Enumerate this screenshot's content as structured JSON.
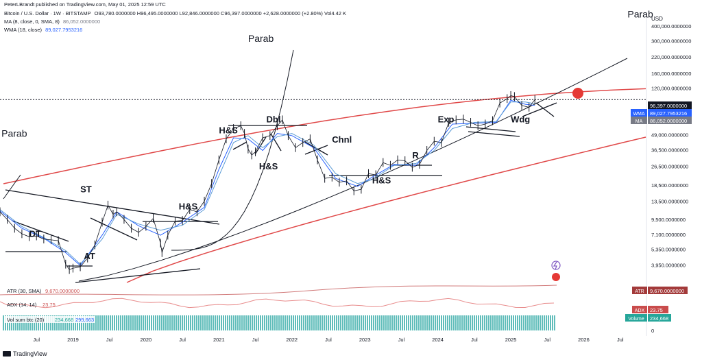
{
  "header": {
    "publisher": "PeterLBrandt published on TradingView.com, May 01, 2025 12:59 UTC",
    "symbol": "Bitcoin / U.S. Dollar · 1W · BITSTAMP",
    "ohlc": "O93,780.0000000  H96,495.0000000  L92,846.0000000  C96,397.0000000  +2,628.0000000 (+2.80%)  Vol4.42 K",
    "ma_label": "MA (8, close, 0, SMA, 8)",
    "ma_value": "86,052.0000000",
    "wma_label": "WMA (18, close)",
    "wma_value": "89,027.7953216"
  },
  "footer": {
    "brand": "TradingView"
  },
  "colors": {
    "price": "#131722",
    "ma": "#2962ff",
    "wma": "#5b9bd5",
    "parabola_red": "#e04848",
    "trendline": "#131722",
    "atr": "#d17a7a",
    "adx": "#e88c8c",
    "volume": "#4fb6b2",
    "marker": "#e53935"
  },
  "chart_data": {
    "type": "line",
    "title": "Bitcoin / U.S. Dollar · 1W · BITSTAMP",
    "xlabel": "",
    "ylabel": "USD",
    "yscale": "log",
    "ylim": [
      2700,
      520000
    ],
    "xlim": [
      2018.0,
      2026.85
    ],
    "x_ticks": [
      {
        "x": 2018.5,
        "label": "Jul"
      },
      {
        "x": 2019.0,
        "label": "2019"
      },
      {
        "x": 2019.5,
        "label": "Jul"
      },
      {
        "x": 2020.0,
        "label": "2020"
      },
      {
        "x": 2020.5,
        "label": "Jul"
      },
      {
        "x": 2021.0,
        "label": "2021"
      },
      {
        "x": 2021.5,
        "label": "Jul"
      },
      {
        "x": 2022.0,
        "label": "2022"
      },
      {
        "x": 2022.5,
        "label": "Jul"
      },
      {
        "x": 2023.0,
        "label": "2023"
      },
      {
        "x": 2023.5,
        "label": "Jul"
      },
      {
        "x": 2024.0,
        "label": "2024"
      },
      {
        "x": 2024.5,
        "label": "Jul"
      },
      {
        "x": 2025.0,
        "label": "2025"
      },
      {
        "x": 2025.5,
        "label": "Jul"
      },
      {
        "x": 2026.0,
        "label": "2026"
      },
      {
        "x": 2026.5,
        "label": "Jul"
      }
    ],
    "y_axis_label": "USD",
    "y_ticks": [
      {
        "v": 400000,
        "label": "400,000.0000000"
      },
      {
        "v": 300000,
        "label": "300,000.0000000"
      },
      {
        "v": 220000,
        "label": "220,000.0000000"
      },
      {
        "v": 160000,
        "label": "160,000.0000000"
      },
      {
        "v": 120000,
        "label": "120,000.0000000"
      },
      {
        "v": 65000,
        "label": "65,000.0000000"
      },
      {
        "v": 49000,
        "label": "49,000.0000000"
      },
      {
        "v": 36500,
        "label": "36,500.0000000"
      },
      {
        "v": 26500,
        "label": "26,500.0000000"
      },
      {
        "v": 18500,
        "label": "18,500.0000000"
      },
      {
        "v": 13500,
        "label": "13,500.0000000"
      },
      {
        "v": 9500,
        "label": "9,500.0000000"
      },
      {
        "v": 7100,
        "label": "7,100.0000000"
      },
      {
        "v": 5350,
        "label": "5,350.0000000"
      },
      {
        "v": 3950,
        "label": "3,950.0000000"
      }
    ],
    "price_labels": [
      {
        "name": "",
        "value": 96397,
        "text": "96,397.0000000",
        "bg": "#131722",
        "fg": "#ffffff"
      },
      {
        "name": "WMA",
        "value": 89027.7953216,
        "text": "89,027.7953216",
        "bg": "#2962ff",
        "fg": "#ffffff"
      },
      {
        "name": "MA",
        "value": 86052,
        "text": "86,052.0000000",
        "bg": "#787b86",
        "fg": "#ffffff"
      }
    ],
    "series": [
      {
        "name": "Price",
        "x": [
          2018.0,
          2018.1,
          2018.2,
          2018.3,
          2018.4,
          2018.5,
          2018.6,
          2018.7,
          2018.8,
          2018.9,
          2018.95,
          2019.0,
          2019.1,
          2019.2,
          2019.3,
          2019.4,
          2019.48,
          2019.55,
          2019.6,
          2019.7,
          2019.8,
          2019.9,
          2020.0,
          2020.1,
          2020.2,
          2020.22,
          2020.3,
          2020.4,
          2020.5,
          2020.6,
          2020.7,
          2020.8,
          2020.9,
          2021.0,
          2021.1,
          2021.2,
          2021.3,
          2021.35,
          2021.4,
          2021.45,
          2021.5,
          2021.6,
          2021.7,
          2021.8,
          2021.87,
          2021.95,
          2022.05,
          2022.15,
          2022.25,
          2022.35,
          2022.45,
          2022.55,
          2022.65,
          2022.75,
          2022.85,
          2022.95,
          2023.05,
          2023.15,
          2023.25,
          2023.35,
          2023.45,
          2023.55,
          2023.65,
          2023.75,
          2023.85,
          2023.95,
          2024.05,
          2024.15,
          2024.25,
          2024.35,
          2024.45,
          2024.55,
          2024.65,
          2024.75,
          2024.85,
          2024.95,
          2025.0,
          2025.05,
          2025.15,
          2025.25,
          2025.33
        ],
        "y": [
          11000,
          9500,
          8000,
          7200,
          6800,
          6900,
          6500,
          6400,
          6300,
          4000,
          3600,
          3700,
          3800,
          4500,
          5800,
          9000,
          12500,
          10500,
          11000,
          9500,
          8000,
          7400,
          8300,
          9700,
          6000,
          5000,
          7000,
          9200,
          9300,
          11500,
          11000,
          13500,
          19000,
          30000,
          45000,
          55000,
          58000,
          50000,
          37000,
          33000,
          35000,
          46000,
          48000,
          58000,
          65000,
          48000,
          38000,
          42000,
          45000,
          30000,
          21000,
          21500,
          19500,
          20000,
          16500,
          17000,
          23000,
          22500,
          28500,
          27000,
          30000,
          29500,
          26000,
          27500,
          36000,
          43000,
          42000,
          62000,
          65000,
          66000,
          62000,
          58000,
          60000,
          64000,
          90000,
          98000,
          104000,
          102000,
          86000,
          83000,
          96397
        ]
      },
      {
        "name": "WMA",
        "x": [
          2018.0,
          2018.3,
          2018.6,
          2018.9,
          2019.1,
          2019.4,
          2019.6,
          2019.9,
          2020.2,
          2020.5,
          2020.8,
          2021.0,
          2021.2,
          2021.4,
          2021.6,
          2021.8,
          2022.0,
          2022.3,
          2022.6,
          2022.9,
          2023.1,
          2023.4,
          2023.7,
          2023.95,
          2024.2,
          2024.5,
          2024.8,
          2025.0,
          2025.2,
          2025.33
        ],
        "y": [
          11500,
          8300,
          6700,
          5200,
          4000,
          6500,
          10500,
          8700,
          7700,
          8500,
          11500,
          22000,
          42000,
          48000,
          38000,
          47000,
          50000,
          40000,
          23000,
          19000,
          20500,
          27000,
          28000,
          36000,
          55000,
          62000,
          63000,
          92000,
          92000,
          89027.7953216
        ]
      },
      {
        "name": "MA",
        "x": [
          2018.0,
          2018.3,
          2018.6,
          2018.9,
          2019.1,
          2019.4,
          2019.6,
          2019.9,
          2020.2,
          2020.5,
          2020.8,
          2021.0,
          2021.2,
          2021.4,
          2021.6,
          2021.8,
          2022.0,
          2022.3,
          2022.6,
          2022.9,
          2023.1,
          2023.4,
          2023.7,
          2023.95,
          2024.2,
          2024.5,
          2024.8,
          2025.0,
          2025.2,
          2025.33
        ],
        "y": [
          11200,
          8000,
          6600,
          5000,
          3900,
          7000,
          11000,
          8400,
          7000,
          9000,
          12000,
          25000,
          46000,
          45000,
          36000,
          50000,
          48000,
          38000,
          21000,
          18000,
          21500,
          27500,
          27000,
          38000,
          60000,
          61000,
          62000,
          95000,
          88000,
          86052
        ]
      }
    ],
    "annotations": [
      {
        "text": "DT",
        "x": 2018.4,
        "y": 6800
      },
      {
        "text": "AT",
        "x": 2019.15,
        "y": 4400
      },
      {
        "text": "ST",
        "x": 2019.1,
        "y": 16000
      },
      {
        "text": "H&S",
        "x": 2020.45,
        "y": 11500
      },
      {
        "text": "H&S",
        "x": 2021.0,
        "y": 50000
      },
      {
        "text": "Dbl",
        "x": 2021.65,
        "y": 62000
      },
      {
        "text": "H&S",
        "x": 2021.55,
        "y": 25000
      },
      {
        "text": "Chnl",
        "x": 2022.55,
        "y": 42000
      },
      {
        "text": "H&S",
        "x": 2023.1,
        "y": 19000
      },
      {
        "text": "R",
        "x": 2023.65,
        "y": 31000
      },
      {
        "text": "Exp",
        "x": 2024.0,
        "y": 62000
      },
      {
        "text": "Wdg",
        "x": 2025.0,
        "y": 62000
      },
      {
        "text": "Parab",
        "x": 2021.4,
        "y": 295000
      },
      {
        "text": "Parab",
        "x": 2018.02,
        "y": 47000
      },
      {
        "text": "Parab",
        "x": 2026.6,
        "y": 470000
      }
    ],
    "indicators": [
      {
        "name": "ATR (30, SMA)",
        "value": "9,670.0000000",
        "badge": "ATR",
        "badge_value": "9,670.0000000"
      },
      {
        "name": "ADX (14, 14)",
        "value": "23.75",
        "badge": "ADX",
        "badge_value": "23.75"
      },
      {
        "name": "Vol sum btc (20)",
        "value": "234,668",
        "value2": "299,663",
        "badge": "Volume",
        "badge_value": "234,668"
      }
    ],
    "lower_axis_label": "0",
    "grid": false,
    "legend": "top-left"
  }
}
